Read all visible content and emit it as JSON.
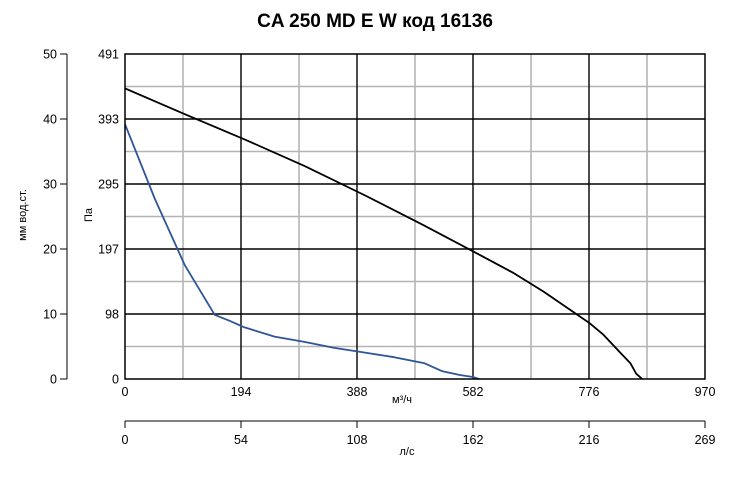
{
  "chart_data": {
    "type": "line",
    "title": "CA 250 MD E W код 16136",
    "xlabel": "м³/ч",
    "ylabel": "Па",
    "xlim": [
      0,
      970
    ],
    "ylim": [
      0,
      491
    ],
    "x_ticks": [
      "0",
      "194",
      "388",
      "582",
      "776",
      "970"
    ],
    "y_ticks": [
      "0",
      "98",
      "197",
      "295",
      "393",
      "491"
    ],
    "secondary_y_axis": {
      "label": "мм вод.ст.",
      "ticks": [
        "0",
        "10",
        "20",
        "30",
        "40",
        "50"
      ],
      "range": [
        0,
        50
      ]
    },
    "secondary_x_axis": {
      "label": "л/с",
      "ticks": [
        "0",
        "54",
        "108",
        "162",
        "216",
        "269"
      ],
      "range": [
        0,
        269
      ]
    },
    "grid": true,
    "series": [
      {
        "color": "#000000",
        "points": [
          [
            0,
            439
          ],
          [
            100,
            400
          ],
          [
            200,
            362
          ],
          [
            300,
            322
          ],
          [
            400,
            278
          ],
          [
            500,
            232
          ],
          [
            582,
            193
          ],
          [
            650,
            160
          ],
          [
            700,
            132
          ],
          [
            750,
            101
          ],
          [
            776,
            85
          ],
          [
            800,
            67
          ],
          [
            830,
            38
          ],
          [
            845,
            24
          ],
          [
            855,
            8
          ],
          [
            865,
            0
          ]
        ]
      },
      {
        "color": "#2f5597",
        "points": [
          [
            0,
            385
          ],
          [
            50,
            272
          ],
          [
            100,
            172
          ],
          [
            150,
            97
          ],
          [
            175,
            88
          ],
          [
            200,
            78
          ],
          [
            250,
            64
          ],
          [
            300,
            56
          ],
          [
            350,
            47
          ],
          [
            400,
            40
          ],
          [
            450,
            33
          ],
          [
            500,
            24
          ],
          [
            530,
            12
          ],
          [
            560,
            6
          ],
          [
            582,
            3
          ],
          [
            592,
            0
          ]
        ]
      }
    ]
  }
}
